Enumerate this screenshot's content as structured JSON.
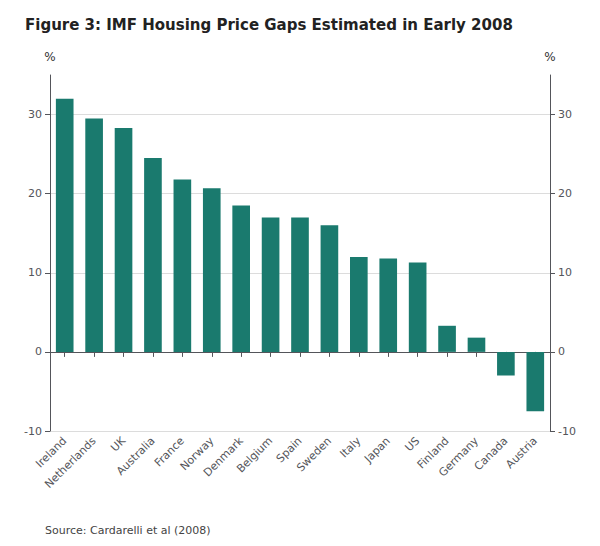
{
  "chart_data": {
    "type": "bar",
    "title": "Figure 3: IMF Housing Price Gaps Estimated in Early 2008",
    "ylabel": "%",
    "y2label": "%",
    "annotations": [
      "Source: Cardarelli et al (2008)"
    ],
    "categories": [
      "Ireland",
      "Netherlands",
      "UK",
      "Australia",
      "France",
      "Norway",
      "Denmark",
      "Belgium",
      "Spain",
      "Sweden",
      "Italy",
      "Japan",
      "US",
      "Finland",
      "Germany",
      "Canada",
      "Austria"
    ],
    "values": [
      32.0,
      29.5,
      28.3,
      24.5,
      21.8,
      20.7,
      18.5,
      17.0,
      17.0,
      16.0,
      12.0,
      11.8,
      11.3,
      3.3,
      1.8,
      -3.0,
      -7.5
    ],
    "color": "#1a7a6e",
    "ylim": [
      -10,
      35
    ],
    "yticks": [
      -10,
      0,
      10,
      20,
      30
    ],
    "y2lim": [
      -10,
      35
    ],
    "y2ticks": [
      -10,
      0,
      10,
      20,
      30
    ],
    "grid": true
  }
}
